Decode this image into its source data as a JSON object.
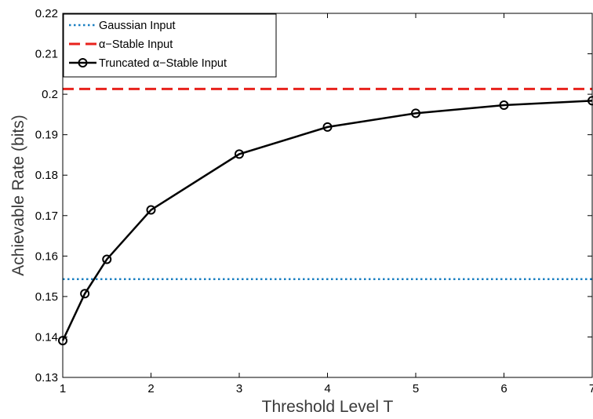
{
  "chart_data": {
    "type": "line",
    "title": "",
    "xlabel": "Threshold Level T",
    "ylabel": "Achievable Rate (bits)",
    "xlim": [
      1,
      7
    ],
    "ylim": [
      0.13,
      0.22
    ],
    "xticks": [
      "1",
      "2",
      "3",
      "4",
      "5",
      "6",
      "7"
    ],
    "yticks": [
      "0.13",
      "0.14",
      "0.15",
      "0.16",
      "0.17",
      "0.18",
      "0.19",
      "0.2",
      "0.21",
      "0.22"
    ],
    "grid": false,
    "legend_position": "top-left",
    "series": [
      {
        "name": "Gaussian Input",
        "style": "dotted",
        "color": "#1a7fc1",
        "x": [
          1,
          7
        ],
        "y": [
          0.1543,
          0.1543
        ]
      },
      {
        "name": "α−Stable Input",
        "style": "dashed",
        "color": "#e8221c",
        "x": [
          1,
          7
        ],
        "y": [
          0.2013,
          0.2013
        ]
      },
      {
        "name": "Truncated α−Stable Input",
        "style": "solid-circle-markers",
        "color": "#000000",
        "x": [
          1,
          1.25,
          1.5,
          2,
          3,
          4,
          5,
          6,
          7
        ],
        "y": [
          0.1391,
          0.1507,
          0.1592,
          0.1714,
          0.1852,
          0.1919,
          0.1953,
          0.1973,
          0.1984
        ]
      }
    ]
  }
}
